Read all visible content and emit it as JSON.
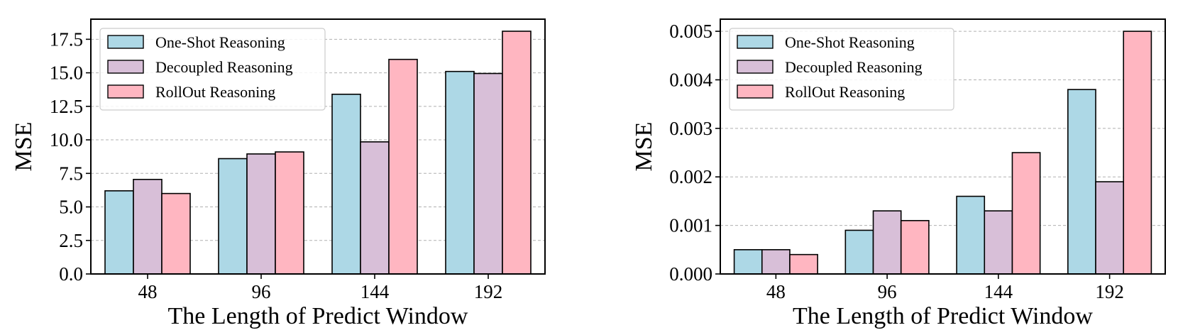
{
  "colors": {
    "one_shot": "#add8e6",
    "decoupled": "#d8bfd8",
    "rollout": "#ffb6c1",
    "edge": "#000000",
    "grid": "#b0b0b0"
  },
  "chart_data": [
    {
      "type": "bar",
      "categories": [
        "48",
        "96",
        "144",
        "192"
      ],
      "series": [
        {
          "name": "One-Shot Reasoning",
          "values": [
            6.2,
            8.6,
            13.4,
            15.1
          ]
        },
        {
          "name": "Decoupled Reasoning",
          "values": [
            7.05,
            8.95,
            9.85,
            14.95
          ]
        },
        {
          "name": "RollOut Reasoning",
          "values": [
            6.0,
            9.1,
            16.0,
            18.1
          ]
        }
      ],
      "title": "",
      "xlabel": "The Length of Predict Window",
      "ylabel": "MSE",
      "ylim": [
        0,
        19.0
      ],
      "yticks": [
        "0.0",
        "2.5",
        "5.0",
        "7.5",
        "10.0",
        "12.5",
        "15.0",
        "17.5"
      ],
      "ytick_values": [
        0,
        2.5,
        5.0,
        7.5,
        10.0,
        12.5,
        15.0,
        17.5
      ],
      "grid": "y-dashed",
      "legend": "top-left"
    },
    {
      "type": "bar",
      "categories": [
        "48",
        "96",
        "144",
        "192"
      ],
      "series": [
        {
          "name": "One-Shot Reasoning",
          "values": [
            0.0005,
            0.0009,
            0.0016,
            0.0038
          ]
        },
        {
          "name": "Decoupled Reasoning",
          "values": [
            0.0005,
            0.0013,
            0.0013,
            0.0019
          ]
        },
        {
          "name": "RollOut Reasoning",
          "values": [
            0.0004,
            0.0011,
            0.0025,
            0.005
          ]
        }
      ],
      "title": "",
      "xlabel": "The Length of Predict Window",
      "ylabel": "MSE",
      "ylim": [
        0,
        0.00525
      ],
      "yticks": [
        "0.000",
        "0.001",
        "0.002",
        "0.003",
        "0.004",
        "0.005"
      ],
      "ytick_values": [
        0,
        0.001,
        0.002,
        0.003,
        0.004,
        0.005
      ],
      "grid": "y-dashed",
      "legend": "top-left"
    }
  ]
}
